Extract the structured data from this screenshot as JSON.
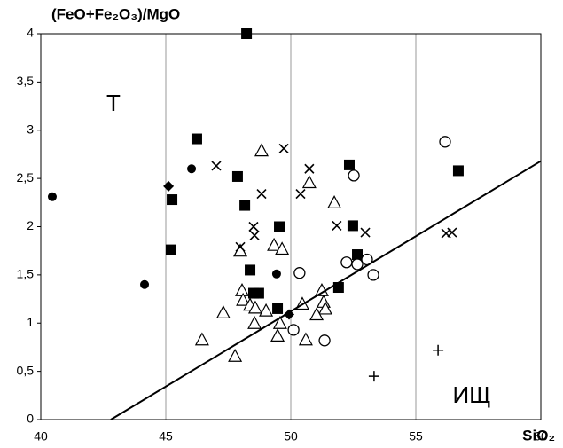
{
  "chart_data": {
    "type": "scatter",
    "y_label": "(FeO+Fe₂O₃)/MgO",
    "x_label": "SiO₂",
    "annotations": [
      "Т",
      "ИЩ"
    ],
    "xlim": [
      40,
      60
    ],
    "xticks": [
      40,
      45,
      50,
      55,
      60
    ],
    "ylim": [
      0,
      4
    ],
    "yticks": [
      0,
      {
        "value": 0.5,
        "label": "0,5"
      },
      1,
      {
        "value": 1.5,
        "label": "1,5"
      },
      2,
      {
        "value": 2.5,
        "label": "2,5"
      },
      3,
      {
        "value": 3.5,
        "label": "3,5"
      },
      4
    ],
    "grid": "x",
    "series": [
      {
        "marker": "square",
        "color": "#000000",
        "x": [
          48.23,
          46.24,
          45.25,
          45.21,
          47.87,
          48.16,
          49.54,
          48.37,
          48.51,
          48.72,
          49.47,
          52.34,
          52.48,
          52.66,
          51.91,
          56.7
        ],
        "y": [
          4.0,
          2.91,
          2.28,
          1.76,
          2.52,
          2.22,
          2.0,
          1.55,
          1.31,
          1.31,
          1.15,
          2.64,
          2.01,
          1.71,
          1.37,
          2.58
        ]
      },
      {
        "marker": "circle",
        "color": "#000000",
        "x": [
          40.46,
          46.03,
          44.15,
          49.43
        ],
        "y": [
          2.31,
          2.6,
          1.4,
          1.51
        ]
      },
      {
        "marker": "open-circle",
        "color": "#000000",
        "x": [
          56.17,
          52.52,
          52.23,
          52.66,
          53.05,
          53.3,
          50.35,
          50.11,
          51.35
        ],
        "y": [
          2.88,
          2.53,
          1.63,
          1.61,
          1.66,
          1.5,
          1.52,
          0.93,
          0.82
        ]
      },
      {
        "marker": "open-triangle",
        "color": "#000000",
        "x": [
          48.83,
          50.74,
          51.74,
          49.33,
          49.65,
          47.98,
          48.05,
          48.09,
          48.37,
          48.58,
          49.01,
          47.3,
          48.55,
          49.57,
          49.47,
          50.46,
          51.24,
          51.31,
          51.38,
          51.03,
          50.6,
          46.45,
          47.77
        ],
        "y": [
          2.79,
          2.46,
          2.25,
          1.81,
          1.77,
          1.75,
          1.34,
          1.24,
          1.19,
          1.16,
          1.13,
          1.11,
          1.0,
          1.0,
          0.87,
          1.2,
          1.34,
          1.22,
          1.15,
          1.09,
          0.83,
          0.83,
          0.66
        ]
      },
      {
        "marker": "x",
        "color": "#000000",
        "x": [
          47.02,
          49.72,
          50.74,
          50.39,
          48.83,
          48.51,
          48.55,
          47.98,
          51.84,
          52.98,
          56.21,
          56.45
        ],
        "y": [
          2.63,
          2.81,
          2.6,
          2.34,
          2.34,
          2.0,
          1.91,
          1.79,
          2.01,
          1.94,
          1.93,
          1.94
        ]
      },
      {
        "marker": "diamond",
        "color": "#000000",
        "x": [
          45.11,
          49.93
        ],
        "y": [
          2.42,
          1.09
        ]
      },
      {
        "marker": "plus",
        "color": "#000000",
        "x": [
          53.33,
          55.89
        ],
        "y": [
          0.45,
          0.72
        ]
      },
      {
        "marker": "line",
        "color": "#000000",
        "x": [
          42.8,
          60
        ],
        "y": [
          0,
          2.68
        ]
      }
    ]
  }
}
